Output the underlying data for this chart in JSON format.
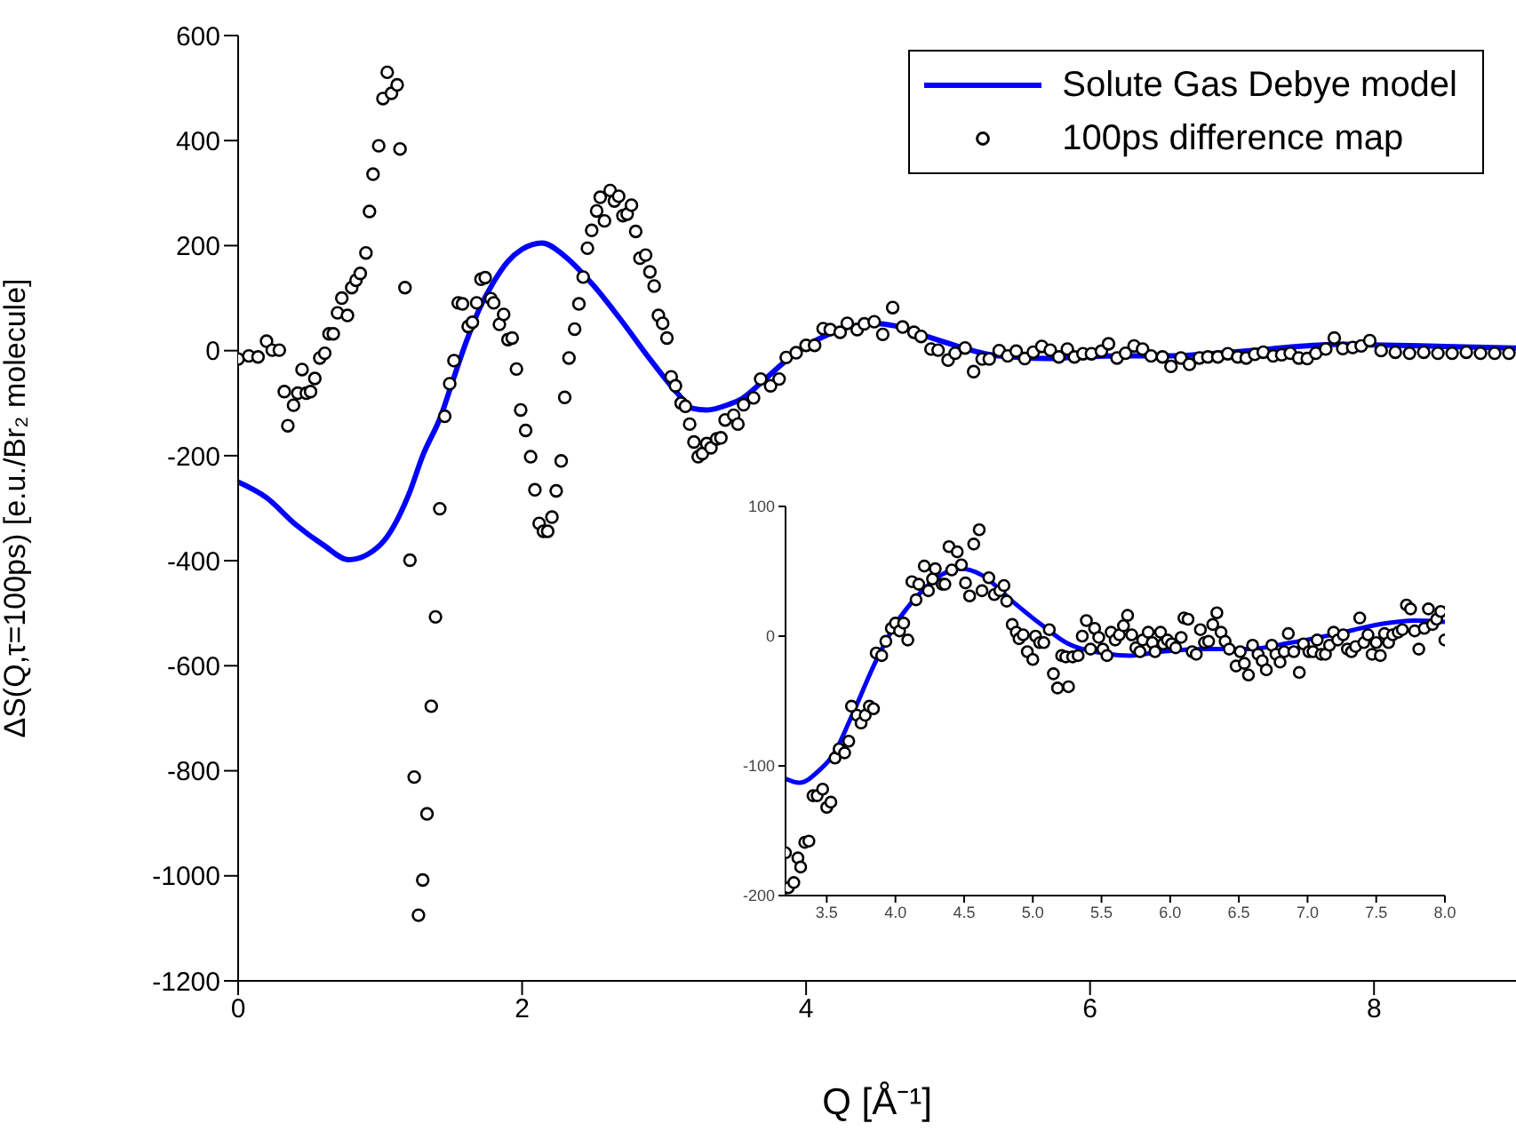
{
  "chart_data": [
    {
      "type": "line",
      "xlabel": "Q [Å⁻¹]",
      "ylabel": "ΔS(Q,τ=100ps) [e.u./Br₂ molecule]",
      "xlim": [
        0,
        9
      ],
      "xticks": [
        0,
        2,
        4,
        6,
        8
      ],
      "ylim": [
        -1200,
        600
      ],
      "yticks": [
        -1200,
        -1000,
        -800,
        -600,
        -400,
        -200,
        0,
        200,
        400,
        600
      ],
      "legend": "top right",
      "grid": false,
      "series": [
        {
          "name": "Solute Gas Debye model",
          "type": "line",
          "color": "#0000ff",
          "marker": "none",
          "line_style": "solid",
          "x": [
            0,
            0.2,
            0.4,
            0.6,
            0.78,
            1.0,
            1.2,
            1.3,
            1.43,
            1.5,
            1.6,
            1.7,
            1.8,
            1.9,
            2.0,
            2.14,
            2.3,
            2.5,
            2.7,
            2.9,
            3.1,
            3.2,
            3.3,
            3.45,
            3.55,
            3.68,
            3.85,
            4.0,
            4.16,
            4.33,
            4.48,
            4.63,
            4.85,
            5.06,
            5.26,
            5.5,
            5.71,
            5.93,
            6.27,
            6.57,
            6.88,
            7.22,
            7.57,
            7.78,
            8.0,
            8.5,
            9.0
          ],
          "values": [
            -250,
            -280,
            -330,
            -370,
            -398,
            -370,
            -275,
            -200,
            -123,
            -67,
            12,
            80,
            131,
            170,
            193,
            205,
            180,
            125,
            57,
            -16,
            -83,
            -110,
            -113,
            -103,
            -91,
            -62,
            -21,
            9,
            31,
            47,
            52,
            47,
            27,
            9,
            -6,
            -13,
            -15,
            -12,
            -10,
            -10,
            -5,
            2,
            10,
            12,
            11,
            8,
            5
          ]
        },
        {
          "name": "100ps difference map",
          "type": "scatter",
          "color": "#000000",
          "marker": "circle",
          "x": [
            0,
            0.075,
            0.14,
            0.2,
            0.24,
            0.29,
            0.325,
            0.35,
            0.39,
            0.42,
            0.45,
            0.48,
            0.51,
            0.54,
            0.575,
            0.61,
            0.64,
            0.67,
            0.7,
            0.73,
            0.77,
            0.8,
            0.83,
            0.86,
            0.9,
            0.925,
            0.95,
            0.99,
            1.02,
            1.05,
            1.08,
            1.12,
            1.14,
            1.175,
            1.21,
            1.24,
            1.27,
            1.3,
            1.33,
            1.36,
            1.39,
            1.42,
            1.455,
            1.49,
            1.52,
            1.55,
            1.58,
            1.62,
            1.65,
            1.68,
            1.71,
            1.74,
            1.78,
            1.8,
            1.84,
            1.87,
            1.9,
            1.93,
            1.96,
            1.99,
            2.025,
            2.06,
            2.09,
            2.12,
            2.15,
            2.18,
            2.21,
            2.24,
            2.275,
            2.3,
            2.33,
            2.37,
            2.4,
            2.43,
            2.46,
            2.49,
            2.525,
            2.55,
            2.58,
            2.62,
            2.65,
            2.68,
            2.71,
            2.74,
            2.77,
            2.8,
            2.83,
            2.87,
            2.9,
            2.93,
            2.96,
            2.99,
            3.02,
            3.05,
            3.08,
            3.12,
            3.15,
            3.18,
            3.21,
            3.24,
            3.27,
            3.3,
            3.33,
            3.37,
            3.4,
            3.43,
            3.49,
            3.52,
            3.56,
            3.63,
            3.68,
            3.75,
            3.81,
            3.86,
            3.93,
            4.0,
            4.06,
            4.12,
            4.17,
            4.24,
            4.29,
            4.36,
            4.41,
            4.48,
            4.54,
            4.61,
            4.68,
            4.76,
            4.81,
            4.88,
            4.93,
            5.0,
            5.05,
            5.12,
            5.18,
            5.24,
            5.29,
            5.36,
            5.42,
            5.48,
            5.54,
            5.6,
            5.66,
            5.72,
            5.78,
            5.84,
            5.89,
            5.95,
            6.01,
            6.08,
            6.13,
            6.19,
            6.25,
            6.31,
            6.37,
            6.43,
            6.51,
            6.57,
            6.64,
            6.7,
            6.77,
            6.83,
            6.9,
            6.97,
            7.04,
            7.1,
            7.16,
            7.22,
            7.29,
            7.35,
            7.41,
            7.47,
            7.53,
            7.59,
            7.66,
            7.72,
            7.78,
            7.85,
            7.91,
            7.97,
            8.05,
            8.15,
            8.25,
            8.35,
            8.45,
            8.55,
            8.65,
            8.75,
            8.85,
            8.95
          ],
          "values": [
            -16,
            -10,
            -12,
            18,
            1,
            1,
            -78,
            -143,
            -104,
            -81,
            -36,
            -81,
            -78,
            -53,
            -14,
            -5,
            32,
            32,
            72,
            100,
            67,
            120,
            134,
            147,
            186,
            265,
            336,
            390,
            480,
            530,
            490,
            506,
            384,
            120,
            -399,
            -812,
            -1075,
            -1008,
            -882,
            -677,
            -507,
            -301,
            -125,
            -63,
            -19,
            91,
            89,
            46,
            54,
            91,
            136,
            139,
            99,
            91,
            50,
            69,
            21,
            24,
            -35,
            -113,
            -152,
            -202,
            -265,
            -329,
            -344,
            -344,
            -317,
            -267,
            -210,
            -89,
            -14,
            41,
            89,
            140,
            195,
            229,
            266,
            292,
            247,
            305,
            285,
            294,
            257,
            260,
            277,
            227,
            176,
            182,
            150,
            123,
            67,
            52,
            24,
            -50,
            -67,
            -100,
            -106,
            -140,
            -174,
            -202,
            -196,
            -177,
            -185,
            -168,
            -166,
            -132,
            -123,
            -140,
            -103,
            -90,
            -54,
            -67,
            -54,
            -13,
            -4,
            10,
            10,
            42,
            40,
            35,
            52,
            40,
            51,
            55,
            31,
            82,
            45,
            35,
            27,
            3,
            1,
            -18,
            -5,
            5,
            -40,
            -16,
            -16,
            0,
            -10,
            -1,
            -15,
            -3,
            8,
            1,
            -12,
            3,
            -12,
            -6,
            -6,
            -1,
            13,
            -14,
            -5,
            9,
            3,
            -10,
            -12,
            -30,
            -14,
            -26,
            -14,
            -12,
            -12,
            -6,
            -12,
            -14,
            -7,
            -3,
            -10,
            -8,
            -5,
            -14,
            -15,
            -5,
            3,
            24,
            4,
            6,
            9,
            19,
            0,
            -3,
            -5,
            -3,
            -5,
            -5,
            -3,
            -5,
            -5,
            -5
          ]
        }
      ]
    },
    {
      "type": "line",
      "xlim": [
        3.2,
        8.0
      ],
      "xticks": [
        {
          "value": 3.5,
          "label": "3.5"
        },
        {
          "value": 4,
          "label": "4.0"
        },
        {
          "value": 4.5,
          "label": "4.5"
        },
        {
          "value": 5,
          "label": "5.0"
        },
        {
          "value": 5.5,
          "label": "5.5"
        },
        {
          "value": 6,
          "label": "6.0"
        },
        {
          "value": 6.5,
          "label": "6.5"
        },
        {
          "value": 7,
          "label": "7.0"
        },
        {
          "value": 7.5,
          "label": "7.5"
        },
        {
          "value": 8,
          "label": "8.0"
        }
      ],
      "ylim": [
        -200,
        100
      ],
      "yticks": [
        -200,
        -100,
        0,
        100
      ],
      "grid": false,
      "series": [
        {
          "type": "line",
          "color": "#0000ff",
          "marker": "none",
          "line_style": "solid",
          "x": [
            3.2,
            3.3,
            3.45,
            3.55,
            3.68,
            3.85,
            4.0,
            4.16,
            4.33,
            4.48,
            4.63,
            4.85,
            5.06,
            5.26,
            5.5,
            5.71,
            5.93,
            6.27,
            6.57,
            6.88,
            7.22,
            7.57,
            7.78,
            8.0
          ],
          "values": [
            -110,
            -113,
            -103,
            -91,
            -62,
            -21,
            9,
            31,
            47,
            52,
            47,
            27,
            9,
            -6,
            -13,
            -15,
            -12,
            -10,
            -10,
            -5,
            2,
            10,
            12,
            11
          ]
        },
        {
          "type": "scatter",
          "color": "#000000",
          "marker": "circle",
          "x": [
            3.2,
            3.22,
            3.26,
            3.29,
            3.31,
            3.34,
            3.37,
            3.4,
            3.43,
            3.47,
            3.5,
            3.53,
            3.56,
            3.59,
            3.63,
            3.66,
            3.68,
            3.72,
            3.75,
            3.78,
            3.81,
            3.84,
            3.86,
            3.9,
            3.93,
            3.97,
            4.0,
            4.03,
            4.06,
            4.09,
            4.12,
            4.15,
            4.17,
            4.21,
            4.24,
            4.27,
            4.29,
            4.34,
            4.36,
            4.39,
            4.41,
            4.45,
            4.48,
            4.51,
            4.54,
            4.57,
            4.61,
            4.63,
            4.68,
            4.72,
            4.76,
            4.79,
            4.81,
            4.85,
            4.88,
            4.9,
            4.93,
            4.96,
            5.0,
            5.02,
            5.05,
            5.08,
            5.12,
            5.15,
            5.18,
            5.21,
            5.24,
            5.26,
            5.29,
            5.33,
            5.36,
            5.39,
            5.42,
            5.45,
            5.48,
            5.51,
            5.54,
            5.57,
            5.6,
            5.63,
            5.66,
            5.69,
            5.72,
            5.75,
            5.78,
            5.8,
            5.84,
            5.87,
            5.89,
            5.93,
            5.95,
            5.98,
            6.01,
            6.04,
            6.08,
            6.1,
            6.13,
            6.16,
            6.19,
            6.22,
            6.25,
            6.28,
            6.31,
            6.34,
            6.37,
            6.4,
            6.43,
            6.48,
            6.51,
            6.54,
            6.57,
            6.6,
            6.64,
            6.67,
            6.7,
            6.74,
            6.77,
            6.8,
            6.83,
            6.86,
            6.9,
            6.94,
            6.97,
            7.01,
            7.04,
            7.07,
            7.1,
            7.13,
            7.16,
            7.19,
            7.22,
            7.26,
            7.29,
            7.32,
            7.35,
            7.38,
            7.41,
            7.44,
            7.47,
            7.5,
            7.53,
            7.56,
            7.59,
            7.62,
            7.66,
            7.69,
            7.72,
            7.75,
            7.78,
            7.81,
            7.85,
            7.88,
            7.91,
            7.94,
            7.97,
            8.0
          ],
          "values": [
            -167,
            -194,
            -190,
            -171,
            -178,
            -159,
            -158,
            -123,
            -123,
            -118,
            -132,
            -128,
            -94,
            -87,
            -90,
            -81,
            -54,
            -61,
            -67,
            -61,
            -54,
            -56,
            -13,
            -15,
            -4,
            6,
            10,
            4,
            10,
            -3,
            42,
            28,
            40,
            54,
            35,
            44,
            52,
            40,
            40,
            69,
            51,
            65,
            55,
            41,
            31,
            71,
            82,
            35,
            45,
            32,
            35,
            39,
            27,
            9,
            3,
            -2,
            1,
            -12,
            -18,
            0,
            -5,
            -5,
            5,
            -29,
            -40,
            -15,
            -16,
            -39,
            -16,
            -15,
            0,
            12,
            -10,
            6,
            -1,
            -10,
            -15,
            3,
            -3,
            1,
            8,
            16,
            1,
            -9,
            -12,
            -3,
            3,
            -5,
            -12,
            3,
            -6,
            -3,
            -6,
            -9,
            -1,
            14,
            13,
            -12,
            -14,
            5,
            -5,
            -4,
            9,
            18,
            3,
            -4,
            -10,
            -23,
            -12,
            -21,
            -30,
            -7,
            -14,
            -19,
            -26,
            -7,
            -14,
            -20,
            -12,
            2,
            -12,
            -28,
            -6,
            -12,
            -12,
            -3,
            -14,
            -14,
            -7,
            3,
            -3,
            1,
            -10,
            -12,
            -8,
            14,
            -5,
            1,
            -14,
            -5,
            -15,
            2,
            -5,
            1,
            3,
            5,
            24,
            21,
            4,
            -10,
            6,
            21,
            9,
            13,
            19,
            -3
          ]
        }
      ]
    }
  ]
}
